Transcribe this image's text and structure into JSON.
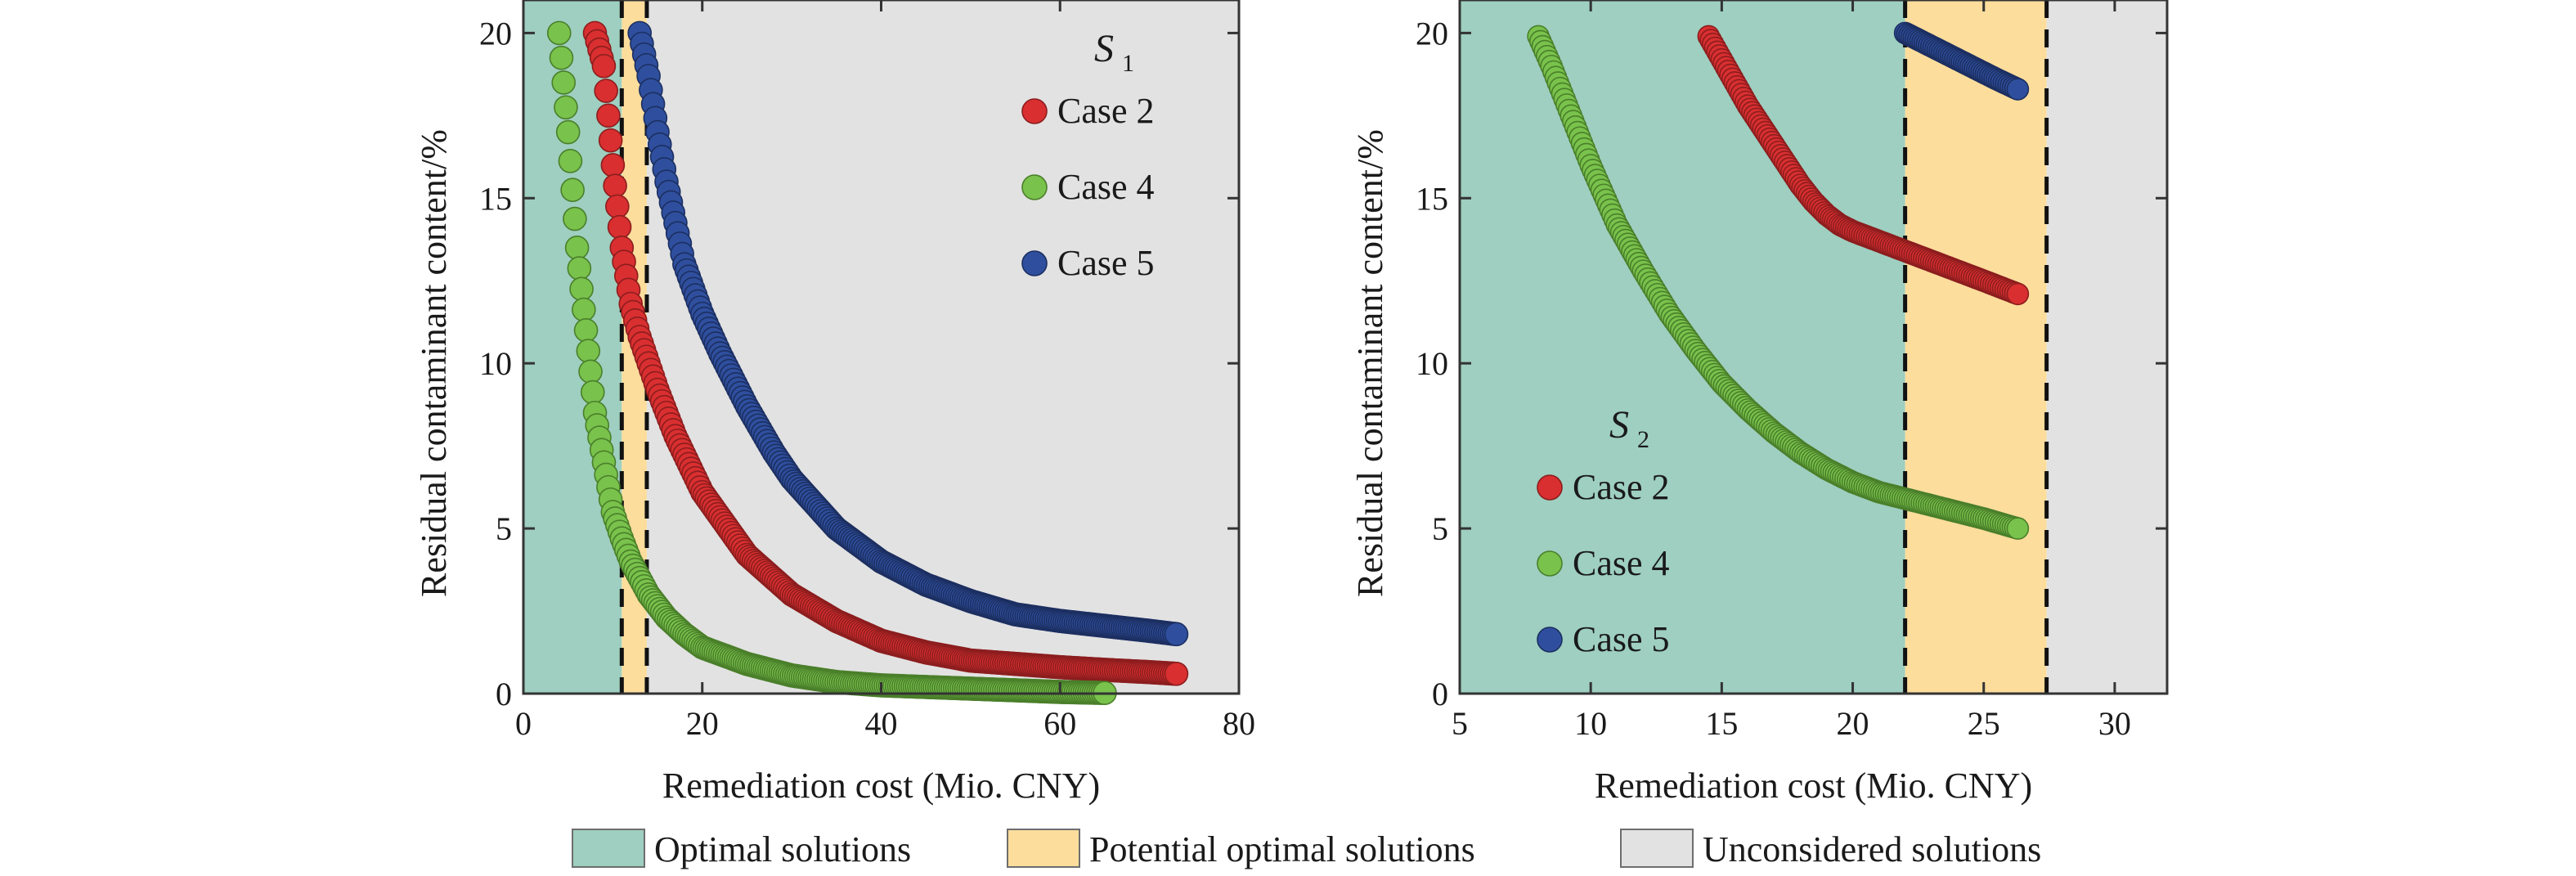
{
  "region_colors": {
    "optimal": "#9ecfc0",
    "potential": "#fcdd9c",
    "unconsidered": "#e2e2e2"
  },
  "bottom_legend": [
    {
      "key": "optimal",
      "label": "Optimal solutions"
    },
    {
      "key": "potential",
      "label": "Potential optimal solutions"
    },
    {
      "key": "unconsidered",
      "label": "Unconsidered solutions"
    }
  ],
  "chart_data": [
    {
      "type": "scatter",
      "panel_label": "S",
      "panel_label_sub": "1",
      "xlabel": "Remediation cost (Mio. CNY)",
      "ylabel": "Residual contaminant content/%",
      "xlim": [
        0,
        80
      ],
      "ylim": [
        0,
        21
      ],
      "xticks": [
        0,
        20,
        40,
        60,
        80
      ],
      "yticks": [
        0,
        5,
        10,
        15,
        20
      ],
      "regions": [
        {
          "type": "optimal",
          "x": [
            0,
            11
          ]
        },
        {
          "type": "potential",
          "x": [
            11,
            13.8
          ]
        },
        {
          "type": "unconsidered",
          "x": [
            13.8,
            80
          ]
        }
      ],
      "dashed_lines_x": [
        11,
        13.8
      ],
      "legend_position": "top-right",
      "series": [
        {
          "name": "Case 2",
          "color": "#d92f30",
          "stroke": "#8c1d1e",
          "x": [
            8,
            9,
            10,
            11,
            12,
            13,
            14,
            15,
            17,
            20,
            25,
            30,
            35,
            40,
            45,
            50,
            55,
            60,
            65,
            70,
            73
          ],
          "y": [
            20,
            19,
            16,
            13.5,
            11.8,
            10.8,
            10,
            9.2,
            7.8,
            6.1,
            4.2,
            3.0,
            2.2,
            1.6,
            1.25,
            1.0,
            0.9,
            0.8,
            0.72,
            0.65,
            0.6
          ]
        },
        {
          "name": "Case 4",
          "color": "#79c24c",
          "stroke": "#4a7f2a",
          "x": [
            4,
            5,
            6,
            7,
            8,
            9,
            10,
            11,
            12,
            13,
            14,
            16,
            18,
            20,
            25,
            30,
            35,
            40,
            45,
            50,
            55,
            60,
            65
          ],
          "y": [
            20,
            17,
            13.5,
            11,
            8.5,
            7,
            5.5,
            4.7,
            4.0,
            3.5,
            3.0,
            2.3,
            1.8,
            1.4,
            0.9,
            0.55,
            0.35,
            0.25,
            0.2,
            0.15,
            0.1,
            0.05,
            0.02
          ]
        },
        {
          "name": "Case 5",
          "color": "#2f4f9e",
          "stroke": "#1c2f61",
          "x": [
            13,
            14,
            15,
            16,
            18,
            20,
            22,
            25,
            28,
            30,
            35,
            40,
            45,
            50,
            55,
            60,
            65,
            70,
            73
          ],
          "y": [
            20,
            18.7,
            17,
            15.5,
            13,
            11.5,
            10.3,
            8.7,
            7.3,
            6.5,
            5.0,
            4.0,
            3.3,
            2.8,
            2.4,
            2.2,
            2.05,
            1.9,
            1.8
          ]
        }
      ]
    },
    {
      "type": "scatter",
      "panel_label": "S",
      "panel_label_sub": "2",
      "xlabel": "Remediation cost (Mio. CNY)",
      "ylabel": "Residual contaminant content/%",
      "xlim": [
        5,
        32
      ],
      "ylim": [
        0,
        21
      ],
      "xticks": [
        5,
        10,
        15,
        20,
        25,
        30
      ],
      "yticks": [
        0,
        5,
        10,
        15,
        20
      ],
      "regions": [
        {
          "type": "optimal",
          "x": [
            5,
            22
          ]
        },
        {
          "type": "potential",
          "x": [
            22,
            27.4
          ]
        },
        {
          "type": "unconsidered",
          "x": [
            27.4,
            32
          ]
        }
      ],
      "dashed_lines_x": [
        22,
        27.4
      ],
      "legend_position": "bottom-left",
      "series": [
        {
          "name": "Case 2",
          "color": "#d92f30",
          "stroke": "#8c1d1e",
          "x": [
            14.5,
            15,
            15.5,
            16,
            16.5,
            17,
            17.5,
            18,
            18.5,
            19,
            19.5,
            20,
            21,
            22,
            23,
            24,
            25,
            26.3
          ],
          "y": [
            19.9,
            19.2,
            18.5,
            17.8,
            17.2,
            16.6,
            16.0,
            15.4,
            14.9,
            14.5,
            14.2,
            14.0,
            13.7,
            13.4,
            13.1,
            12.8,
            12.5,
            12.1
          ]
        },
        {
          "name": "Case 4",
          "color": "#79c24c",
          "stroke": "#4a7f2a",
          "x": [
            8,
            8.5,
            9,
            9.5,
            10,
            10.5,
            11,
            11.5,
            12,
            13,
            14,
            15,
            16,
            17,
            18,
            19,
            20,
            21,
            22,
            23,
            24,
            25,
            26.3
          ],
          "y": [
            19.9,
            19.0,
            18.0,
            17.0,
            16.0,
            15.1,
            14.2,
            13.5,
            12.8,
            11.5,
            10.4,
            9.4,
            8.6,
            7.9,
            7.3,
            6.8,
            6.4,
            6.1,
            5.9,
            5.7,
            5.5,
            5.3,
            5.0
          ]
        },
        {
          "name": "Case 5",
          "color": "#2f4f9e",
          "stroke": "#1c2f61",
          "x": [
            22,
            22.5,
            23,
            23.5,
            24,
            24.5,
            25,
            25.5,
            26.3
          ],
          "y": [
            20,
            19.8,
            19.6,
            19.4,
            19.2,
            19.0,
            18.8,
            18.6,
            18.3
          ]
        }
      ]
    }
  ]
}
